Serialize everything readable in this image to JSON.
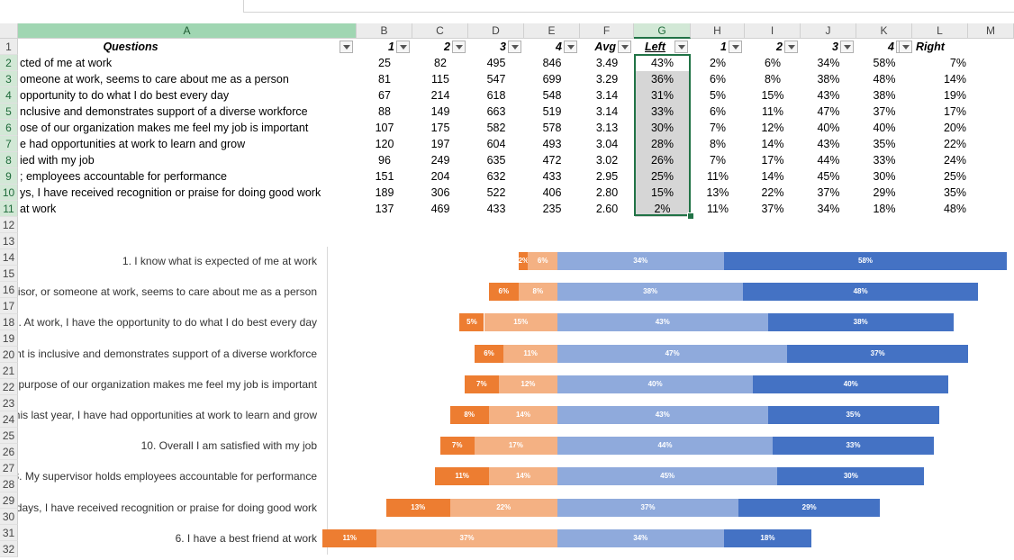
{
  "columns": [
    "A",
    "B",
    "C",
    "D",
    "E",
    "F",
    "G",
    "H",
    "I",
    "J",
    "K",
    "L",
    "M"
  ],
  "row_numbers": [
    "1",
    "2",
    "3",
    "4",
    "5",
    "6",
    "7",
    "8",
    "9",
    "10",
    "11",
    "12",
    "13",
    "14",
    "15",
    "16",
    "17",
    "18",
    "19",
    "20",
    "21",
    "22",
    "23",
    "24",
    "25",
    "26",
    "27",
    "28",
    "29",
    "30",
    "31",
    "32"
  ],
  "headers": {
    "questions": "Questions",
    "b": "1",
    "c": "2",
    "d": "3",
    "e": "4",
    "f": "Avg",
    "g": "Left",
    "h": "1",
    "i": "2",
    "j": "3",
    "k": "4",
    "l": "Right"
  },
  "rows": [
    {
      "q": "cted of me at work",
      "b": "25",
      "c": "82",
      "d": "495",
      "e": "846",
      "f": "3.49",
      "g": "43%",
      "h": "2%",
      "i": "6%",
      "j": "34%",
      "k": "58%",
      "l": "7%"
    },
    {
      "q": "omeone at work, seems to care about me as a person",
      "b": "81",
      "c": "115",
      "d": "547",
      "e": "699",
      "f": "3.29",
      "g": "36%",
      "h": "6%",
      "i": "8%",
      "j": "38%",
      "k": "48%",
      "l": "14%"
    },
    {
      "q": "opportunity to do what I do best every day",
      "b": "67",
      "c": "214",
      "d": "618",
      "e": "548",
      "f": "3.14",
      "g": "31%",
      "h": "5%",
      "i": "15%",
      "j": "43%",
      "k": "38%",
      "l": "19%"
    },
    {
      "q": "nclusive and demonstrates support of a diverse workforce",
      "b": "88",
      "c": "149",
      "d": "663",
      "e": "519",
      "f": "3.14",
      "g": "33%",
      "h": "6%",
      "i": "11%",
      "j": "47%",
      "k": "37%",
      "l": "17%"
    },
    {
      "q": "ose of our organization makes me feel my job is important",
      "b": "107",
      "c": "175",
      "d": "582",
      "e": "578",
      "f": "3.13",
      "g": "30%",
      "h": "7%",
      "i": "12%",
      "j": "40%",
      "k": "40%",
      "l": "20%"
    },
    {
      "q": "e had opportunities at work to learn and grow",
      "b": "120",
      "c": "197",
      "d": "604",
      "e": "493",
      "f": "3.04",
      "g": "28%",
      "h": "8%",
      "i": "14%",
      "j": "43%",
      "k": "35%",
      "l": "22%"
    },
    {
      "q": "ied with my job",
      "b": "96",
      "c": "249",
      "d": "635",
      "e": "472",
      "f": "3.02",
      "g": "26%",
      "h": "7%",
      "i": "17%",
      "j": "44%",
      "k": "33%",
      "l": "24%"
    },
    {
      "q": "; employees accountable for performance",
      "b": "151",
      "c": "204",
      "d": "632",
      "e": "433",
      "f": "2.95",
      "g": "25%",
      "h": "11%",
      "i": "14%",
      "j": "45%",
      "k": "30%",
      "l": "25%"
    },
    {
      "q": "ys, I have received recognition or praise for doing good work",
      "b": "189",
      "c": "306",
      "d": "522",
      "e": "406",
      "f": "2.80",
      "g": "15%",
      "h": "13%",
      "i": "22%",
      "j": "37%",
      "k": "29%",
      "l": "35%"
    },
    {
      "q": "at work",
      "b": "137",
      "c": "469",
      "d": "433",
      "e": "235",
      "f": "2.60",
      "g": "2%",
      "h": "11%",
      "i": "37%",
      "j": "34%",
      "k": "18%",
      "l": "48%"
    }
  ],
  "chart_data": {
    "type": "bar",
    "orientation": "horizontal-diverging",
    "categories": [
      "1. I know what is expected of me at work",
      "visor, or someone at work, seems to care about me as a person",
      ". At work, I have the opportunity to do what I do best every day",
      "nt is inclusive and demonstrates support of a diverse workforce",
      "purpose of our organization makes me feel my job is important",
      "his last year, I have had opportunities at work to learn and grow",
      "10. Overall I am satisfied with my job",
      "8. My supervisor holds employees accountable for performance",
      "days, I have received recognition or praise for doing good work",
      "6. I have a best friend at work"
    ],
    "series": [
      {
        "name": "1",
        "color": "#ed7d31",
        "values": [
          2,
          6,
          5,
          6,
          7,
          8,
          7,
          11,
          13,
          11
        ]
      },
      {
        "name": "2",
        "color": "#f4b183",
        "values": [
          6,
          8,
          15,
          11,
          12,
          14,
          17,
          14,
          22,
          37
        ]
      },
      {
        "name": "3",
        "color": "#8faadc",
        "values": [
          34,
          38,
          43,
          47,
          40,
          43,
          44,
          45,
          37,
          34
        ]
      },
      {
        "name": "4",
        "color": "#4472c4",
        "values": [
          58,
          48,
          38,
          37,
          40,
          35,
          33,
          30,
          29,
          18
        ]
      }
    ],
    "labels": [
      [
        "2%",
        "6%",
        "34%",
        "58%"
      ],
      [
        "6%",
        "8%",
        "38%",
        "48%"
      ],
      [
        "5%",
        "15%",
        "43%",
        "38%"
      ],
      [
        "6%",
        "11%",
        "47%",
        "37%"
      ],
      [
        "7%",
        "12%",
        "40%",
        "40%"
      ],
      [
        "8%",
        "14%",
        "43%",
        "35%"
      ],
      [
        "7%",
        "17%",
        "44%",
        "33%"
      ],
      [
        "11%",
        "14%",
        "45%",
        "30%"
      ],
      [
        "13%",
        "22%",
        "37%",
        "29%"
      ],
      [
        "11%",
        "37%",
        "34%",
        "18%"
      ]
    ]
  }
}
